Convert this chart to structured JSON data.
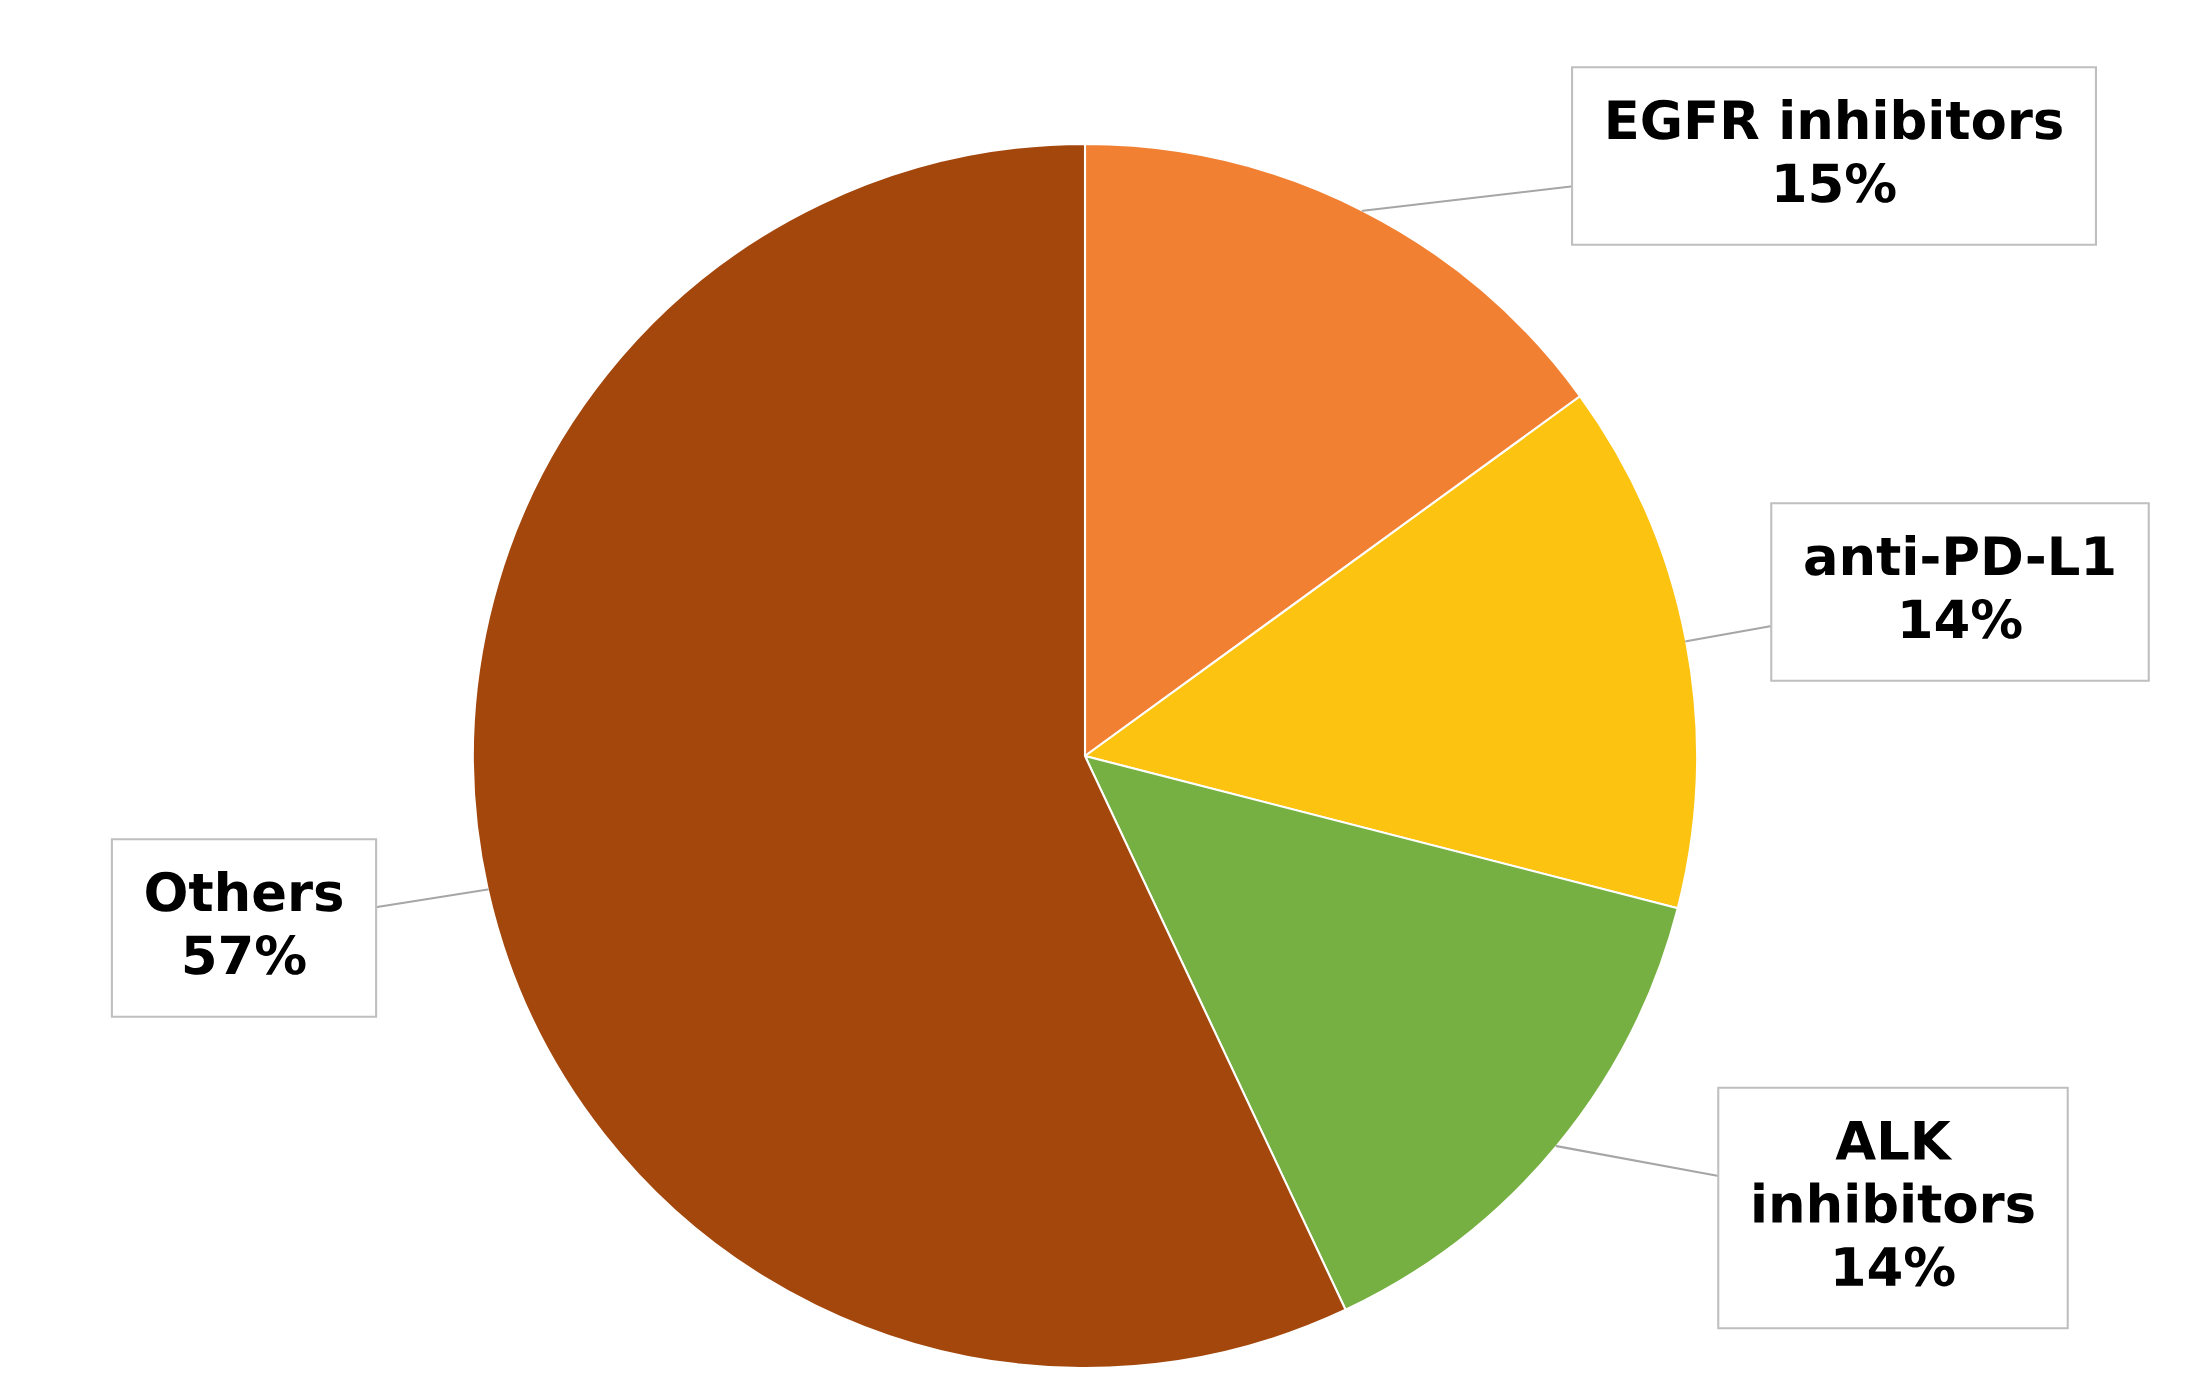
{
  "chart_data": {
    "type": "pie",
    "categories": [
      "EGFR inhibitors",
      "anti-PD-L1",
      "ALK inhibitors",
      "Others"
    ],
    "values": [
      15,
      14,
      14,
      57
    ],
    "colors": [
      "#f28033",
      "#fcc310",
      "#76b043",
      "#a3470c"
    ],
    "value_labels": [
      "15%",
      "14%",
      "14%",
      "57%"
    ]
  }
}
